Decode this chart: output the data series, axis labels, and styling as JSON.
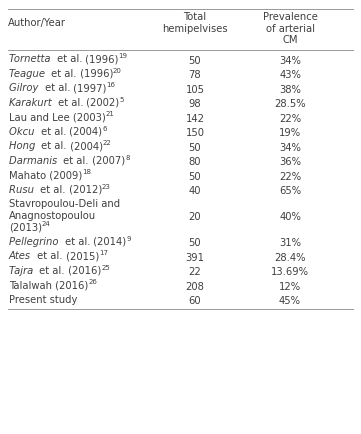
{
  "col_headers": [
    "Author/Year",
    "Total\nhemipelvises",
    "Prevalence\nof arterial\nCM"
  ],
  "rows": [
    [
      [
        "Tornetta ",
        true,
        " et al.",
        false,
        " (1996)"
      ],
      "19",
      "50",
      "34%"
    ],
    [
      [
        "Teague ",
        true,
        " et al.",
        false,
        " (1996)"
      ],
      "20",
      "78",
      "43%"
    ],
    [
      [
        "Gilroy ",
        true,
        " et al.",
        false,
        " (1997)"
      ],
      "16",
      "105",
      "38%"
    ],
    [
      [
        "Karakurt ",
        true,
        " et al.",
        false,
        " (2002)"
      ],
      "5",
      "98",
      "28.5%"
    ],
    [
      [
        "Lau and Lee (2003)"
      ],
      "21",
      "142",
      "22%"
    ],
    [
      [
        "Okcu ",
        true,
        " et al.",
        false,
        " (2004)"
      ],
      "6",
      "150",
      "19%"
    ],
    [
      [
        "Hong ",
        true,
        " et al.",
        false,
        " (2004)"
      ],
      "22",
      "50",
      "34%"
    ],
    [
      [
        "Darmanis ",
        true,
        " et al.",
        false,
        " (2007)"
      ],
      "8",
      "80",
      "36%"
    ],
    [
      [
        "Mahato (2009)"
      ],
      "18",
      "50",
      "22%"
    ],
    [
      [
        "Rusu ",
        true,
        " et al.",
        false,
        " (2012)"
      ],
      "23",
      "40",
      "65%"
    ],
    [
      [
        "Stavropoulou-Deli and\nAnagnostopoulou\n(2013)"
      ],
      "24",
      "20",
      "40%"
    ],
    [
      [
        "Pellegrino ",
        true,
        " et al.",
        false,
        " (2014)"
      ],
      "9",
      "50",
      "31%"
    ],
    [
      [
        "Ates ",
        true,
        " et al.",
        false,
        " (2015)"
      ],
      "17",
      "391",
      "28.4%"
    ],
    [
      [
        "Tajra ",
        true,
        " et al.",
        false,
        " (2016)"
      ],
      "25",
      "22",
      "13.69%"
    ],
    [
      [
        "Talalwah (2016)"
      ],
      "26",
      "208",
      "12%"
    ],
    [
      [
        "Present study"
      ],
      "",
      "60",
      "45%"
    ]
  ],
  "header_line_color": "#999999",
  "text_color": "#404040",
  "bg_color": "#ffffff",
  "font_size": 7.2,
  "fig_width": 3.61,
  "fig_height": 4.35,
  "dpi": 100
}
